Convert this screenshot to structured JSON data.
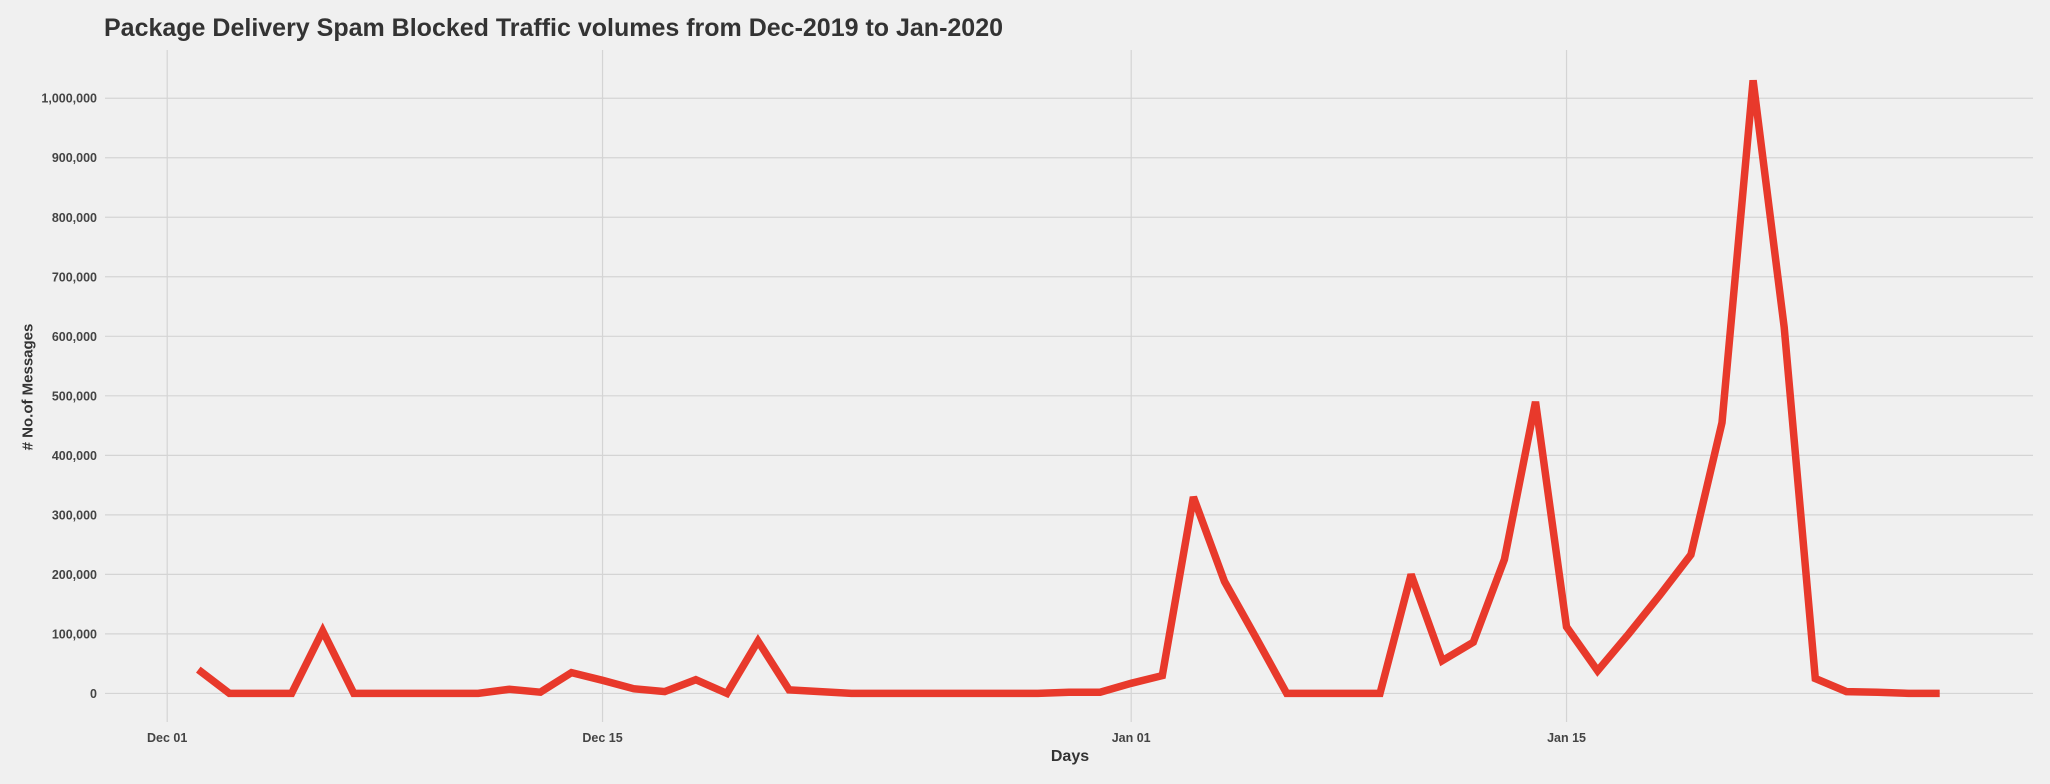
{
  "chart_data": {
    "type": "line",
    "title": "Package Delivery Spam Blocked Traffic volumes from Dec-2019 to Jan-2020",
    "xlabel": "Days",
    "ylabel": "# No.of Messages",
    "xlim": [
      "2019-11-29",
      "2020-01-30"
    ],
    "ylim": [
      -48000,
      1081000
    ],
    "grid": true,
    "line_color": "#e8392b",
    "background": "#f0f0f0",
    "x_ticks": [
      {
        "date": "2019-12-01",
        "label": "Dec 01"
      },
      {
        "date": "2019-12-15",
        "label": "Dec 15"
      },
      {
        "date": "2020-01-01",
        "label": "Jan 01"
      },
      {
        "date": "2020-01-15",
        "label": "Jan 15"
      }
    ],
    "y_ticks": [
      {
        "value": 0,
        "label": "0"
      },
      {
        "value": 100000,
        "label": "100,000"
      },
      {
        "value": 200000,
        "label": "200,000"
      },
      {
        "value": 300000,
        "label": "300,000"
      },
      {
        "value": 400000,
        "label": "400,000"
      },
      {
        "value": 500000,
        "label": "500,000"
      },
      {
        "value": 600000,
        "label": "600,000"
      },
      {
        "value": 700000,
        "label": "700,000"
      },
      {
        "value": 800000,
        "label": "800,000"
      },
      {
        "value": 900000,
        "label": "900,000"
      },
      {
        "value": 1000000,
        "label": "1,000,000"
      }
    ],
    "x": [
      "2019-12-02",
      "2019-12-03",
      "2019-12-04",
      "2019-12-05",
      "2019-12-06",
      "2019-12-07",
      "2019-12-08",
      "2019-12-09",
      "2019-12-10",
      "2019-12-11",
      "2019-12-12",
      "2019-12-13",
      "2019-12-14",
      "2019-12-15",
      "2019-12-16",
      "2019-12-17",
      "2019-12-18",
      "2019-12-19",
      "2019-12-20",
      "2019-12-21",
      "2019-12-22",
      "2019-12-23",
      "2019-12-24",
      "2019-12-25",
      "2019-12-26",
      "2019-12-27",
      "2019-12-28",
      "2019-12-29",
      "2019-12-30",
      "2019-12-31",
      "2020-01-01",
      "2020-01-02",
      "2020-01-03",
      "2020-01-04",
      "2020-01-05",
      "2020-01-06",
      "2020-01-07",
      "2020-01-08",
      "2020-01-09",
      "2020-01-10",
      "2020-01-11",
      "2020-01-12",
      "2020-01-13",
      "2020-01-14",
      "2020-01-15",
      "2020-01-16",
      "2020-01-17",
      "2020-01-18",
      "2020-01-19",
      "2020-01-20",
      "2020-01-21",
      "2020-01-22",
      "2020-01-23",
      "2020-01-24",
      "2020-01-25",
      "2020-01-26",
      "2020-01-27"
    ],
    "values": [
      40000,
      0,
      0,
      0,
      105000,
      0,
      0,
      0,
      0,
      0,
      7000,
      2000,
      35000,
      22000,
      8000,
      3000,
      23000,
      0,
      88000,
      6000,
      3000,
      0,
      0,
      0,
      0,
      0,
      0,
      0,
      2000,
      2000,
      17000,
      30000,
      330000,
      188000,
      95000,
      0,
      0,
      0,
      0,
      200000,
      55000,
      86000,
      225000,
      490000,
      112000,
      38000,
      100000,
      165000,
      233000,
      455000,
      1030000,
      615000,
      25000,
      3000,
      2000,
      0,
      0
    ]
  }
}
